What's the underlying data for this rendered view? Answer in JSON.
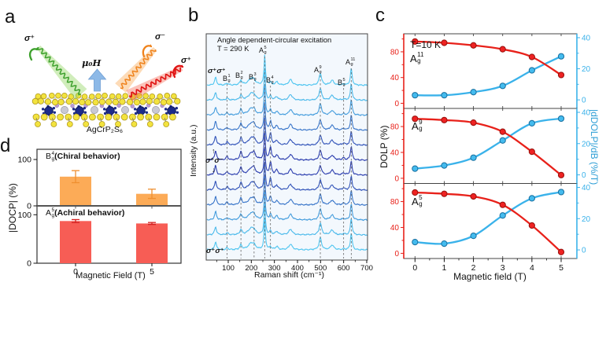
{
  "panel_letters": {
    "a": "a",
    "b": "b",
    "c": "c",
    "d": "d"
  },
  "panel_a": {
    "incident_label": "σ⁺",
    "field_label": "μ₀H",
    "reflected_labels": [
      "σ⁻",
      "σ⁺"
    ],
    "material": "AgCrP₂S₆",
    "colors": {
      "incident_beam": "#3da02c",
      "field_arrow": "#8db9e7",
      "reflected_beam_1": "#ef831d",
      "reflected_beam_2": "#e01414",
      "sulfur": "#f3e33e",
      "chromium": "#1c2b8a",
      "silver": "#c9c9d4",
      "phosphorus": "#b89ad6"
    }
  },
  "chart_data": [
    {
      "id": "raman_spectra",
      "panel": "b",
      "type": "line",
      "title": "Angle dependent-circular excitation",
      "subtitle": "T = 290 K",
      "xlabel": "Raman shift (cm⁻¹)",
      "ylabel": "Intensity (a.u.)",
      "x_ticks": [
        100,
        200,
        300,
        400,
        500,
        600,
        700
      ],
      "xlim": [
        10,
        707
      ],
      "n_spectra": 12,
      "polarization_labels": {
        "top": "σ⁺σ⁺",
        "middle": "σ⁺σ⁻",
        "bottom": "σ⁺σ⁺"
      },
      "middle_range_arrows": {
        "up": "↑",
        "down": "↓"
      },
      "trace_colors": {
        "outer": "#4fc5f0",
        "middle": "#2c3cae"
      },
      "peaks": [
        {
          "label": {
            "base": "B",
            "sup": "1",
            "sub": "g"
          },
          "shift": 95
        },
        {
          "label": {
            "base": "B",
            "sup": "2",
            "sub": "g"
          },
          "shift": 155
        },
        {
          "label": {
            "base": "B",
            "sup": "3",
            "sub": "g"
          },
          "shift": 212
        },
        {
          "label": {
            "base": "A",
            "sup": "5",
            "sub": "g"
          },
          "shift": 258
        },
        {
          "label": {
            "base": "B",
            "sup": "4",
            "sub": "g"
          },
          "shift": 283
        },
        {
          "label": {
            "base": "A",
            "sup": "9",
            "sub": "g"
          },
          "shift": 499
        },
        {
          "label": {
            "base": "B",
            "sup": "5",
            "sub": "g"
          },
          "shift": 600
        },
        {
          "label": {
            "base": "A",
            "sup": "11",
            "sub": "g"
          },
          "shift": 633
        }
      ],
      "unlabeled_peaks": [
        45,
        200,
        310,
        370,
        550
      ]
    },
    {
      "id": "dolp_vs_field",
      "panel": "c",
      "type": "line",
      "annotation": "T=10 K",
      "xlabel": "Magnetic field (T)",
      "ylabel_left": "DOLP (%)",
      "ylabel_right": "|dDOLP|/dB (%/T)",
      "x": [
        0,
        1,
        2,
        3,
        4,
        5
      ],
      "x_ticks": [
        0,
        1,
        2,
        3,
        4,
        5
      ],
      "left_ticks": [
        0,
        40,
        80
      ],
      "right_ticks": [
        0,
        20,
        40
      ],
      "colors": {
        "dolp": "#e8211a",
        "ddolp": "#3ab2ea"
      },
      "subplots": [
        {
          "mode": {
            "base": "A",
            "sup": "11",
            "sub": "g"
          },
          "dolp": [
            96,
            94,
            90,
            84,
            72,
            44
          ],
          "ddolp": [
            3,
            3,
            5,
            9,
            19,
            28
          ]
        },
        {
          "mode": {
            "base": "A",
            "sup": "9",
            "sub": "g"
          },
          "dolp": [
            92,
            90,
            86,
            72,
            41,
            5
          ],
          "ddolp": [
            4,
            6,
            11,
            22,
            33,
            36
          ]
        },
        {
          "mode": {
            "base": "A",
            "sup": "5",
            "sub": "g"
          },
          "dolp": [
            94,
            92,
            88,
            75,
            43,
            2
          ],
          "ddolp": [
            5,
            4,
            9,
            22,
            33,
            37
          ]
        }
      ]
    },
    {
      "id": "docp_bars",
      "panel": "d",
      "type": "bar",
      "xlabel": "Magnetic Field (T)",
      "ylabel": "|DOCP| (%)",
      "categories": [
        "0",
        "5"
      ],
      "y_ticks": [
        0,
        100
      ],
      "ylim": [
        0,
        115
      ],
      "subplots": [
        {
          "mode": {
            "base": "B",
            "sup": "4",
            "sub": "g"
          },
          "behavior": "(Chiral behavior)",
          "values": [
            63,
            26
          ],
          "errors": [
            13,
            10
          ],
          "bar_color": "#fcab57",
          "error_color": "#ef8f2f"
        },
        {
          "mode": {
            "base": "A",
            "sup": "5",
            "sub": "g"
          },
          "behavior": "(Achiral behavior)",
          "values": [
            87,
            82
          ],
          "errors": [
            3,
            2
          ],
          "bar_color": "#f75d55",
          "error_color": "#d42020"
        }
      ]
    }
  ]
}
